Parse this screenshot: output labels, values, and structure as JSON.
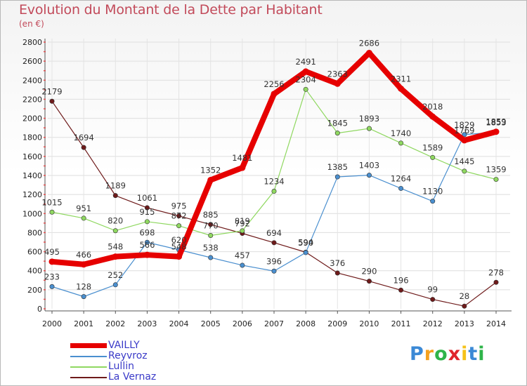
{
  "title": "Evolution du Montant de la Dette par Habitant",
  "unit_label": "(en €)",
  "logo_text": "Proxiti",
  "chart_data": {
    "type": "line",
    "title": "Evolution du Montant de la Dette par Habitant",
    "subtitle": "(en €)",
    "xlabel": "",
    "ylabel": "",
    "x": [
      2000,
      2001,
      2002,
      2003,
      2004,
      2005,
      2006,
      2007,
      2008,
      2009,
      2010,
      2011,
      2012,
      2013,
      2014
    ],
    "ylim": [
      0,
      2800
    ],
    "yticks": [
      0,
      200,
      400,
      600,
      800,
      1000,
      1200,
      1400,
      1600,
      1800,
      2000,
      2200,
      2400,
      2600,
      2800
    ],
    "grid": true,
    "legend_position": "bottom-left",
    "series": [
      {
        "name": "VAILLY",
        "color": "#e60000",
        "values": [
          495,
          466,
          548,
          566,
          548,
          1352,
          1481,
          2256,
          2491,
          2363,
          2686,
          2311,
          2018,
          1769,
          1859
        ]
      },
      {
        "name": "Reyvroz",
        "color": "#4a8fcf",
        "values": [
          233,
          128,
          252,
          698,
          620,
          538,
          457,
          396,
          590,
          1385,
          1403,
          1264,
          1130,
          1829,
          1853
        ]
      },
      {
        "name": "Lullin",
        "color": "#8fd860",
        "values": [
          1015,
          951,
          820,
          915,
          872,
          770,
          819,
          1234,
          2304,
          1845,
          1893,
          1740,
          1589,
          1445,
          1359
        ]
      },
      {
        "name": "La Vernaz",
        "color": "#6e1a1a",
        "values": [
          2179,
          1694,
          1189,
          1061,
          975,
          885,
          792,
          694,
          594,
          376,
          290,
          196,
          99,
          28,
          278
        ]
      }
    ]
  }
}
